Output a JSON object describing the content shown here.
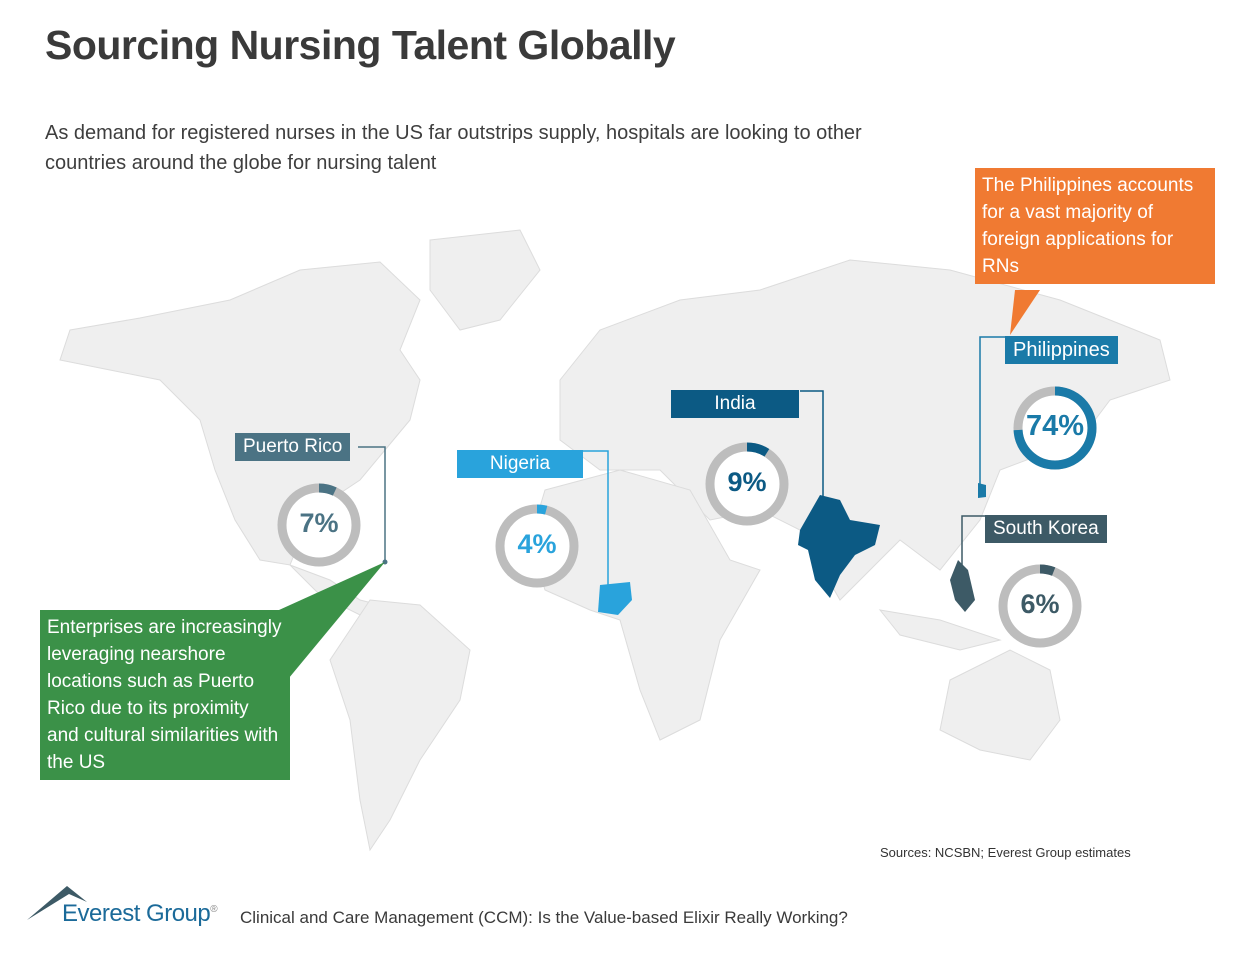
{
  "header": {
    "title": "Sourcing Nursing Talent Globally",
    "subtitle": "As demand for registered nurses in the US far outstrips supply, hospitals are looking to other countries around the globe for nursing talent"
  },
  "countries": [
    {
      "name": "Puerto Rico",
      "percent": 7,
      "value_label": "7%",
      "color": "#4b7384"
    },
    {
      "name": "Nigeria",
      "percent": 4,
      "value_label": "4%",
      "color": "#29a3dc"
    },
    {
      "name": "India",
      "percent": 9,
      "value_label": "9%",
      "color": "#0c5a84"
    },
    {
      "name": "Philippines",
      "percent": 74,
      "value_label": "74%",
      "color": "#1a7aa8"
    },
    {
      "name": "South Korea",
      "percent": 6,
      "value_label": "6%",
      "color": "#3d5a66"
    }
  ],
  "ring_track_color": "#bdbdbd",
  "callouts": {
    "philippines": {
      "text": "The Philippines accounts for a vast majority of foreign applications for RNs",
      "color": "#f07a32"
    },
    "puerto_rico": {
      "text": "Enterprises are increasingly leveraging nearshore locations such as Puerto Rico due to its proximity and cultural similarities with the US",
      "color": "#3b9148"
    }
  },
  "footer": {
    "sources": "Sources: NCSBN; Everest Group estimates",
    "logo": "Everest Group",
    "report_title": "Clinical and Care Management (CCM): Is the Value-based Elixir Really Working?"
  }
}
